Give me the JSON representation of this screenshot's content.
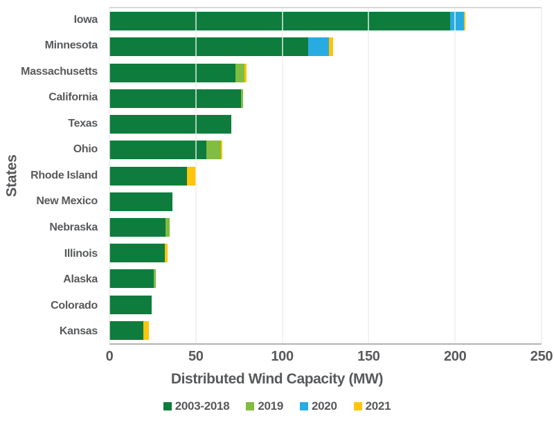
{
  "colors": {
    "text": "#58595b",
    "gridline": "#d9d9d9",
    "axis_line": "#b3b3b3",
    "background": "#ffffff"
  },
  "chart_data": {
    "type": "bar",
    "orientation": "horizontal",
    "stacked": true,
    "title": "",
    "xlabel": "Distributed Wind Capacity (MW)",
    "ylabel": "States",
    "xlim": [
      0,
      250
    ],
    "xticks": [
      0,
      50,
      100,
      150,
      200,
      250
    ],
    "grid": true,
    "legend_position": "bottom",
    "categories": [
      "Iowa",
      "Minnesota",
      "Massachusetts",
      "California",
      "Texas",
      "Ohio",
      "Rhode Island",
      "New Mexico",
      "Nebraska",
      "Illinois",
      "Alaska",
      "Colorado",
      "Kansas"
    ],
    "series": [
      {
        "name": "2003-2018",
        "color": "#0e7c3d",
        "values": [
          197,
          115,
          73,
          76,
          70.5,
          56,
          45,
          36.5,
          32.5,
          32,
          25.5,
          24.5,
          19.5
        ]
      },
      {
        "name": "2019",
        "color": "#80bd41",
        "values": [
          0,
          0,
          5,
          1.5,
          0,
          8.5,
          0,
          0,
          2.5,
          0,
          1.5,
          0,
          0
        ]
      },
      {
        "name": "2020",
        "color": "#29abe2",
        "values": [
          8,
          12,
          0,
          0,
          0,
          0,
          0,
          0,
          0,
          0,
          0,
          0,
          0
        ]
      },
      {
        "name": "2021",
        "color": "#ffc40c",
        "values": [
          1,
          2.5,
          1.5,
          0,
          0,
          1,
          5,
          0,
          0,
          1.5,
          0,
          0,
          3.5
        ]
      }
    ]
  }
}
